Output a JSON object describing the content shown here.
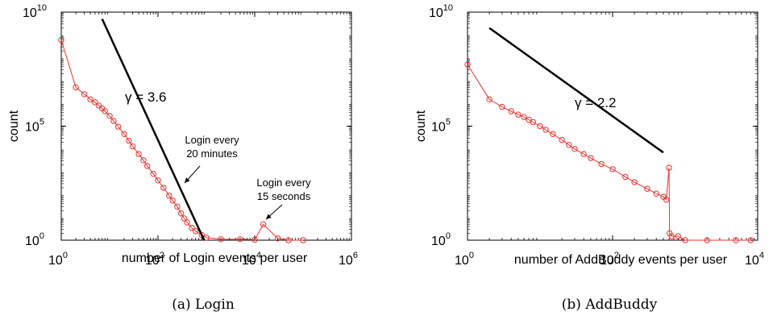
{
  "chart_data": [
    {
      "type": "scatter",
      "caption": "(a) Login",
      "xlabel": "number of Login events per user",
      "ylabel": "count",
      "xscale": "log",
      "yscale": "log",
      "xlim": [
        1,
        1000000
      ],
      "ylim": [
        1,
        10000000000
      ],
      "x_ticks": [
        {
          "base": "10",
          "exp": "0",
          "value": 1
        },
        {
          "base": "10",
          "exp": "2",
          "value": 100
        },
        {
          "base": "10",
          "exp": "4",
          "value": 10000
        },
        {
          "base": "10",
          "exp": "6",
          "value": 1000000
        }
      ],
      "y_ticks": [
        {
          "base": "10",
          "exp": "0",
          "value": 1
        },
        {
          "base": "10",
          "exp": "5",
          "value": 100000
        },
        {
          "base": "10",
          "exp": "10",
          "value": 10000000000
        }
      ],
      "series": [
        {
          "marker": "circle-open",
          "color": "#e8332f",
          "points": [
            [
              1,
              600000000
            ],
            [
              2,
              5000000
            ],
            [
              3,
              2500000
            ],
            [
              4,
              1500000
            ],
            [
              5,
              1100000
            ],
            [
              6,
              800000
            ],
            [
              7,
              600000
            ],
            [
              8,
              450000
            ],
            [
              10,
              280000
            ],
            [
              12,
              170000
            ],
            [
              15,
              95000
            ],
            [
              20,
              45000
            ],
            [
              25,
              23000
            ],
            [
              30,
              13000
            ],
            [
              40,
              6000
            ],
            [
              50,
              3200
            ],
            [
              60,
              1800
            ],
            [
              80,
              800
            ],
            [
              100,
              420
            ],
            [
              130,
              200
            ],
            [
              170,
              90
            ],
            [
              200,
              55
            ],
            [
              250,
              30
            ],
            [
              300,
              15
            ],
            [
              350,
              9
            ],
            [
              400,
              6
            ],
            [
              500,
              3.5
            ],
            [
              600,
              2.5
            ],
            [
              800,
              1.7
            ],
            [
              1000,
              1.3
            ],
            [
              2000,
              1.1
            ],
            [
              5000,
              1.1
            ],
            [
              10000,
              1.05
            ],
            [
              15000,
              5
            ],
            [
              30000,
              1.2
            ],
            [
              50000,
              1
            ],
            [
              100000,
              1
            ]
          ]
        }
      ],
      "fit_line": {
        "x": [
          7,
          900
        ],
        "y": [
          5000000000,
          1
        ],
        "label": "γ = 3.6"
      },
      "annotations": [
        {
          "lines": [
            "Login every",
            "20 minutes"
          ],
          "point": [
            270,
            220
          ]
        },
        {
          "lines": [
            "Login every",
            "15 seconds"
          ],
          "point": [
            14000,
            6
          ]
        }
      ]
    },
    {
      "type": "scatter",
      "caption": "(b) AddBuddy",
      "xlabel": "number of AddBuddy events per user",
      "ylabel": "count",
      "xscale": "log",
      "yscale": "log",
      "xlim": [
        1,
        10000
      ],
      "ylim": [
        1,
        10000000000
      ],
      "x_ticks": [
        {
          "base": "10",
          "exp": "0",
          "value": 1
        },
        {
          "base": "10",
          "exp": "2",
          "value": 100
        },
        {
          "base": "10",
          "exp": "4",
          "value": 10000
        }
      ],
      "y_ticks": [
        {
          "base": "10",
          "exp": "0",
          "value": 1
        },
        {
          "base": "10",
          "exp": "5",
          "value": 100000
        },
        {
          "base": "10",
          "exp": "10",
          "value": 10000000000
        }
      ],
      "series": [
        {
          "marker": "circle-open",
          "color": "#e8332f",
          "points": [
            [
              1,
              50000000
            ],
            [
              2,
              1500000
            ],
            [
              3,
              700000
            ],
            [
              4,
              450000
            ],
            [
              5,
              320000
            ],
            [
              6,
              250000
            ],
            [
              7,
              190000
            ],
            [
              8,
              150000
            ],
            [
              10,
              100000
            ],
            [
              12,
              70000
            ],
            [
              15,
              45000
            ],
            [
              20,
              25000
            ],
            [
              25,
              15000
            ],
            [
              30,
              10000
            ],
            [
              40,
              6000
            ],
            [
              50,
              4000
            ],
            [
              70,
              2200
            ],
            [
              100,
              1300
            ],
            [
              150,
              600
            ],
            [
              200,
              350
            ],
            [
              300,
              180
            ],
            [
              400,
              110
            ],
            [
              500,
              80
            ],
            [
              550,
              60
            ],
            [
              600,
              1500
            ],
            [
              610,
              2
            ],
            [
              650,
              1.5
            ],
            [
              800,
              1.5
            ],
            [
              1000,
              1
            ],
            [
              2000,
              1
            ],
            [
              5000,
              1
            ],
            [
              8000,
              1
            ]
          ]
        }
      ],
      "fit_line": {
        "x": [
          2,
          500
        ],
        "y": [
          2000000000,
          7000
        ],
        "label": "γ = 2.2"
      },
      "annotations": []
    }
  ]
}
